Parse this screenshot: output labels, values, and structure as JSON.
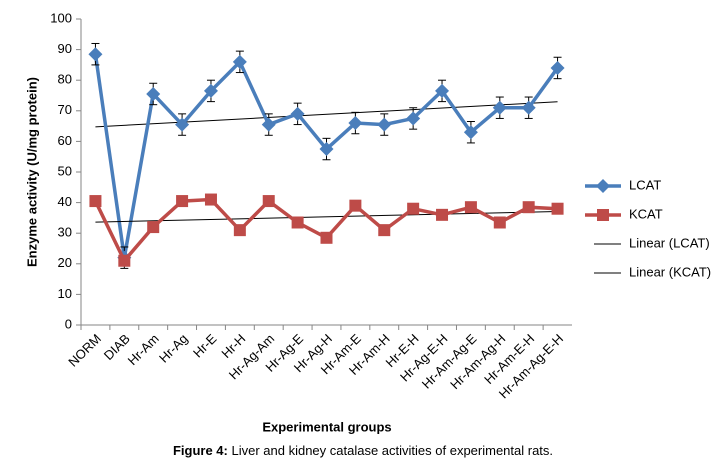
{
  "chart_data": {
    "type": "line",
    "y_label": "Enzyme activity (U/mg protein)",
    "x_label": "Experimental groups",
    "caption_label": "Figure 4:",
    "caption_text": "Liver and kidney catalase activities of experimental rats.",
    "categories": [
      "NORM",
      "DIAB",
      "Hr-Am",
      "Hr-Ag",
      "Hr-E",
      "Hr-H",
      "Hr-Ag-Am",
      "Hr-Ag-E",
      "Hr-Ag-H",
      "Hr-Am-E",
      "Hr-Am-H",
      "Hr-E-H",
      "Hr-Ag-E-H",
      "Hr-Am-Ag-E",
      "Hr-Am-Ag-H",
      "Hr-Am-E-H",
      "Hr-Am-Ag-E-H"
    ],
    "series": [
      {
        "name": "LCAT",
        "color": "#4a7ebb",
        "marker": "diamond",
        "trendline": "Linear (LCAT)",
        "values": [
          88.5,
          22,
          75.5,
          65.5,
          76.5,
          86,
          65.5,
          69,
          57.5,
          66,
          65.5,
          67.5,
          76.5,
          63,
          71,
          71,
          84
        ],
        "errors": [
          3.5,
          3.5,
          3.5,
          3.5,
          3.5,
          3.5,
          3.5,
          3.5,
          3.5,
          3.5,
          3.5,
          3.5,
          3.5,
          3.5,
          3.5,
          3.5,
          3.5
        ]
      },
      {
        "name": "KCAT",
        "color": "#be4b48",
        "marker": "square",
        "trendline": "Linear (KCAT)",
        "values": [
          40.5,
          21,
          32,
          40.5,
          41,
          31,
          40.5,
          33.5,
          28.5,
          39,
          31,
          38,
          36,
          38.5,
          33.5,
          38.5,
          38
        ]
      }
    ],
    "ylim": [
      0,
      100
    ],
    "yticks": [
      0,
      10,
      20,
      30,
      40,
      50,
      60,
      70,
      80,
      90,
      100
    ],
    "grid": false,
    "legend": "right"
  }
}
